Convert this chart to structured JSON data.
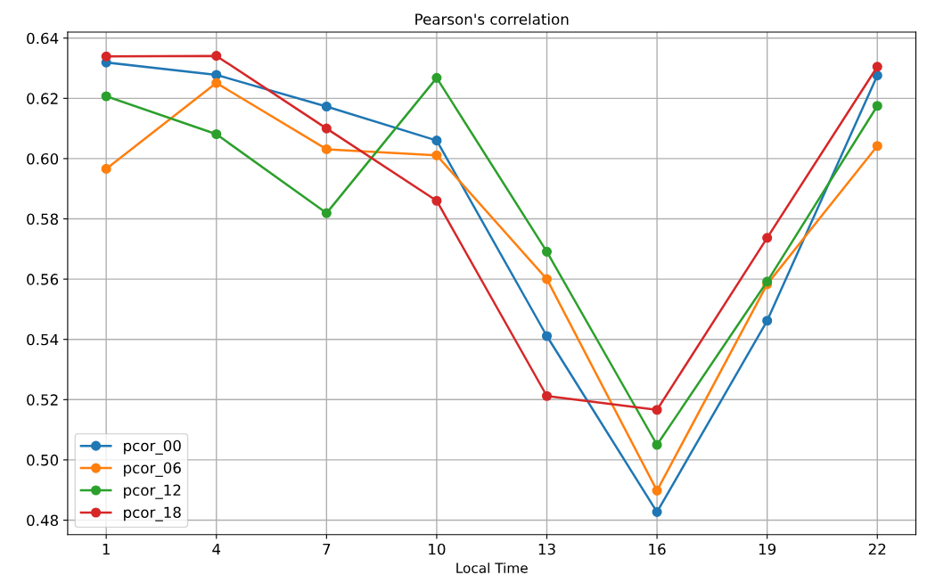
{
  "chart_data": {
    "type": "line",
    "title": "Pearson's correlation",
    "xlabel": "Local Time",
    "x": [
      1,
      4,
      7,
      10,
      13,
      16,
      19,
      22
    ],
    "series": [
      {
        "name": "pcor_00",
        "color": "#1f77b4",
        "values": [
          0.6319,
          0.6278,
          0.6173,
          0.606,
          0.5411,
          0.4827,
          0.5462,
          0.6276
        ]
      },
      {
        "name": "pcor_06",
        "color": "#ff7f0e",
        "values": [
          0.5966,
          0.6251,
          0.6031,
          0.6011,
          0.56,
          0.4898,
          0.5583,
          0.6042
        ]
      },
      {
        "name": "pcor_12",
        "color": "#2ca02c",
        "values": [
          0.6207,
          0.6081,
          0.5819,
          0.6268,
          0.5691,
          0.505,
          0.5592,
          0.6175
        ]
      },
      {
        "name": "pcor_18",
        "color": "#d62728",
        "values": [
          0.6339,
          0.6341,
          0.61,
          0.586,
          0.5212,
          0.5166,
          0.5737,
          0.6305
        ]
      }
    ],
    "xlim": [
      -0.05,
      23.05
    ],
    "xticks": [
      1,
      4,
      7,
      10,
      13,
      16,
      19,
      22
    ],
    "ylim": [
      0.4752,
      0.642
    ],
    "yticks": [
      {
        "value": 0.48,
        "label": "0.48"
      },
      {
        "value": 0.5,
        "label": "0.50"
      },
      {
        "value": 0.52,
        "label": "0.52"
      },
      {
        "value": 0.54,
        "label": "0.54"
      },
      {
        "value": 0.56,
        "label": "0.56"
      },
      {
        "value": 0.58,
        "label": "0.58"
      },
      {
        "value": 0.6,
        "label": "0.60"
      },
      {
        "value": 0.62,
        "label": "0.62"
      },
      {
        "value": 0.64,
        "label": "0.64"
      }
    ],
    "grid": true,
    "legend": "bottom left",
    "marker": "circle",
    "line_style": "solid"
  }
}
